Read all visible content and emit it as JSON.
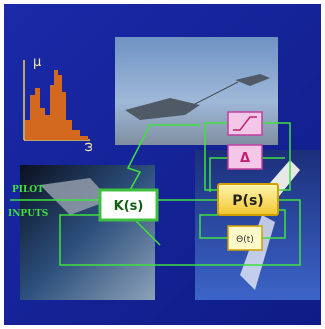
{
  "histogram": {
    "y_label": "μ",
    "x_label": "ω"
  },
  "inputs": [
    "PILOT",
    "INPUTS"
  ],
  "nodes": [
    {
      "label": "K(s)"
    },
    {
      "label": "P(s)"
    },
    {
      "label": "Δ"
    },
    {
      "label": "Θ(t)"
    }
  ]
}
